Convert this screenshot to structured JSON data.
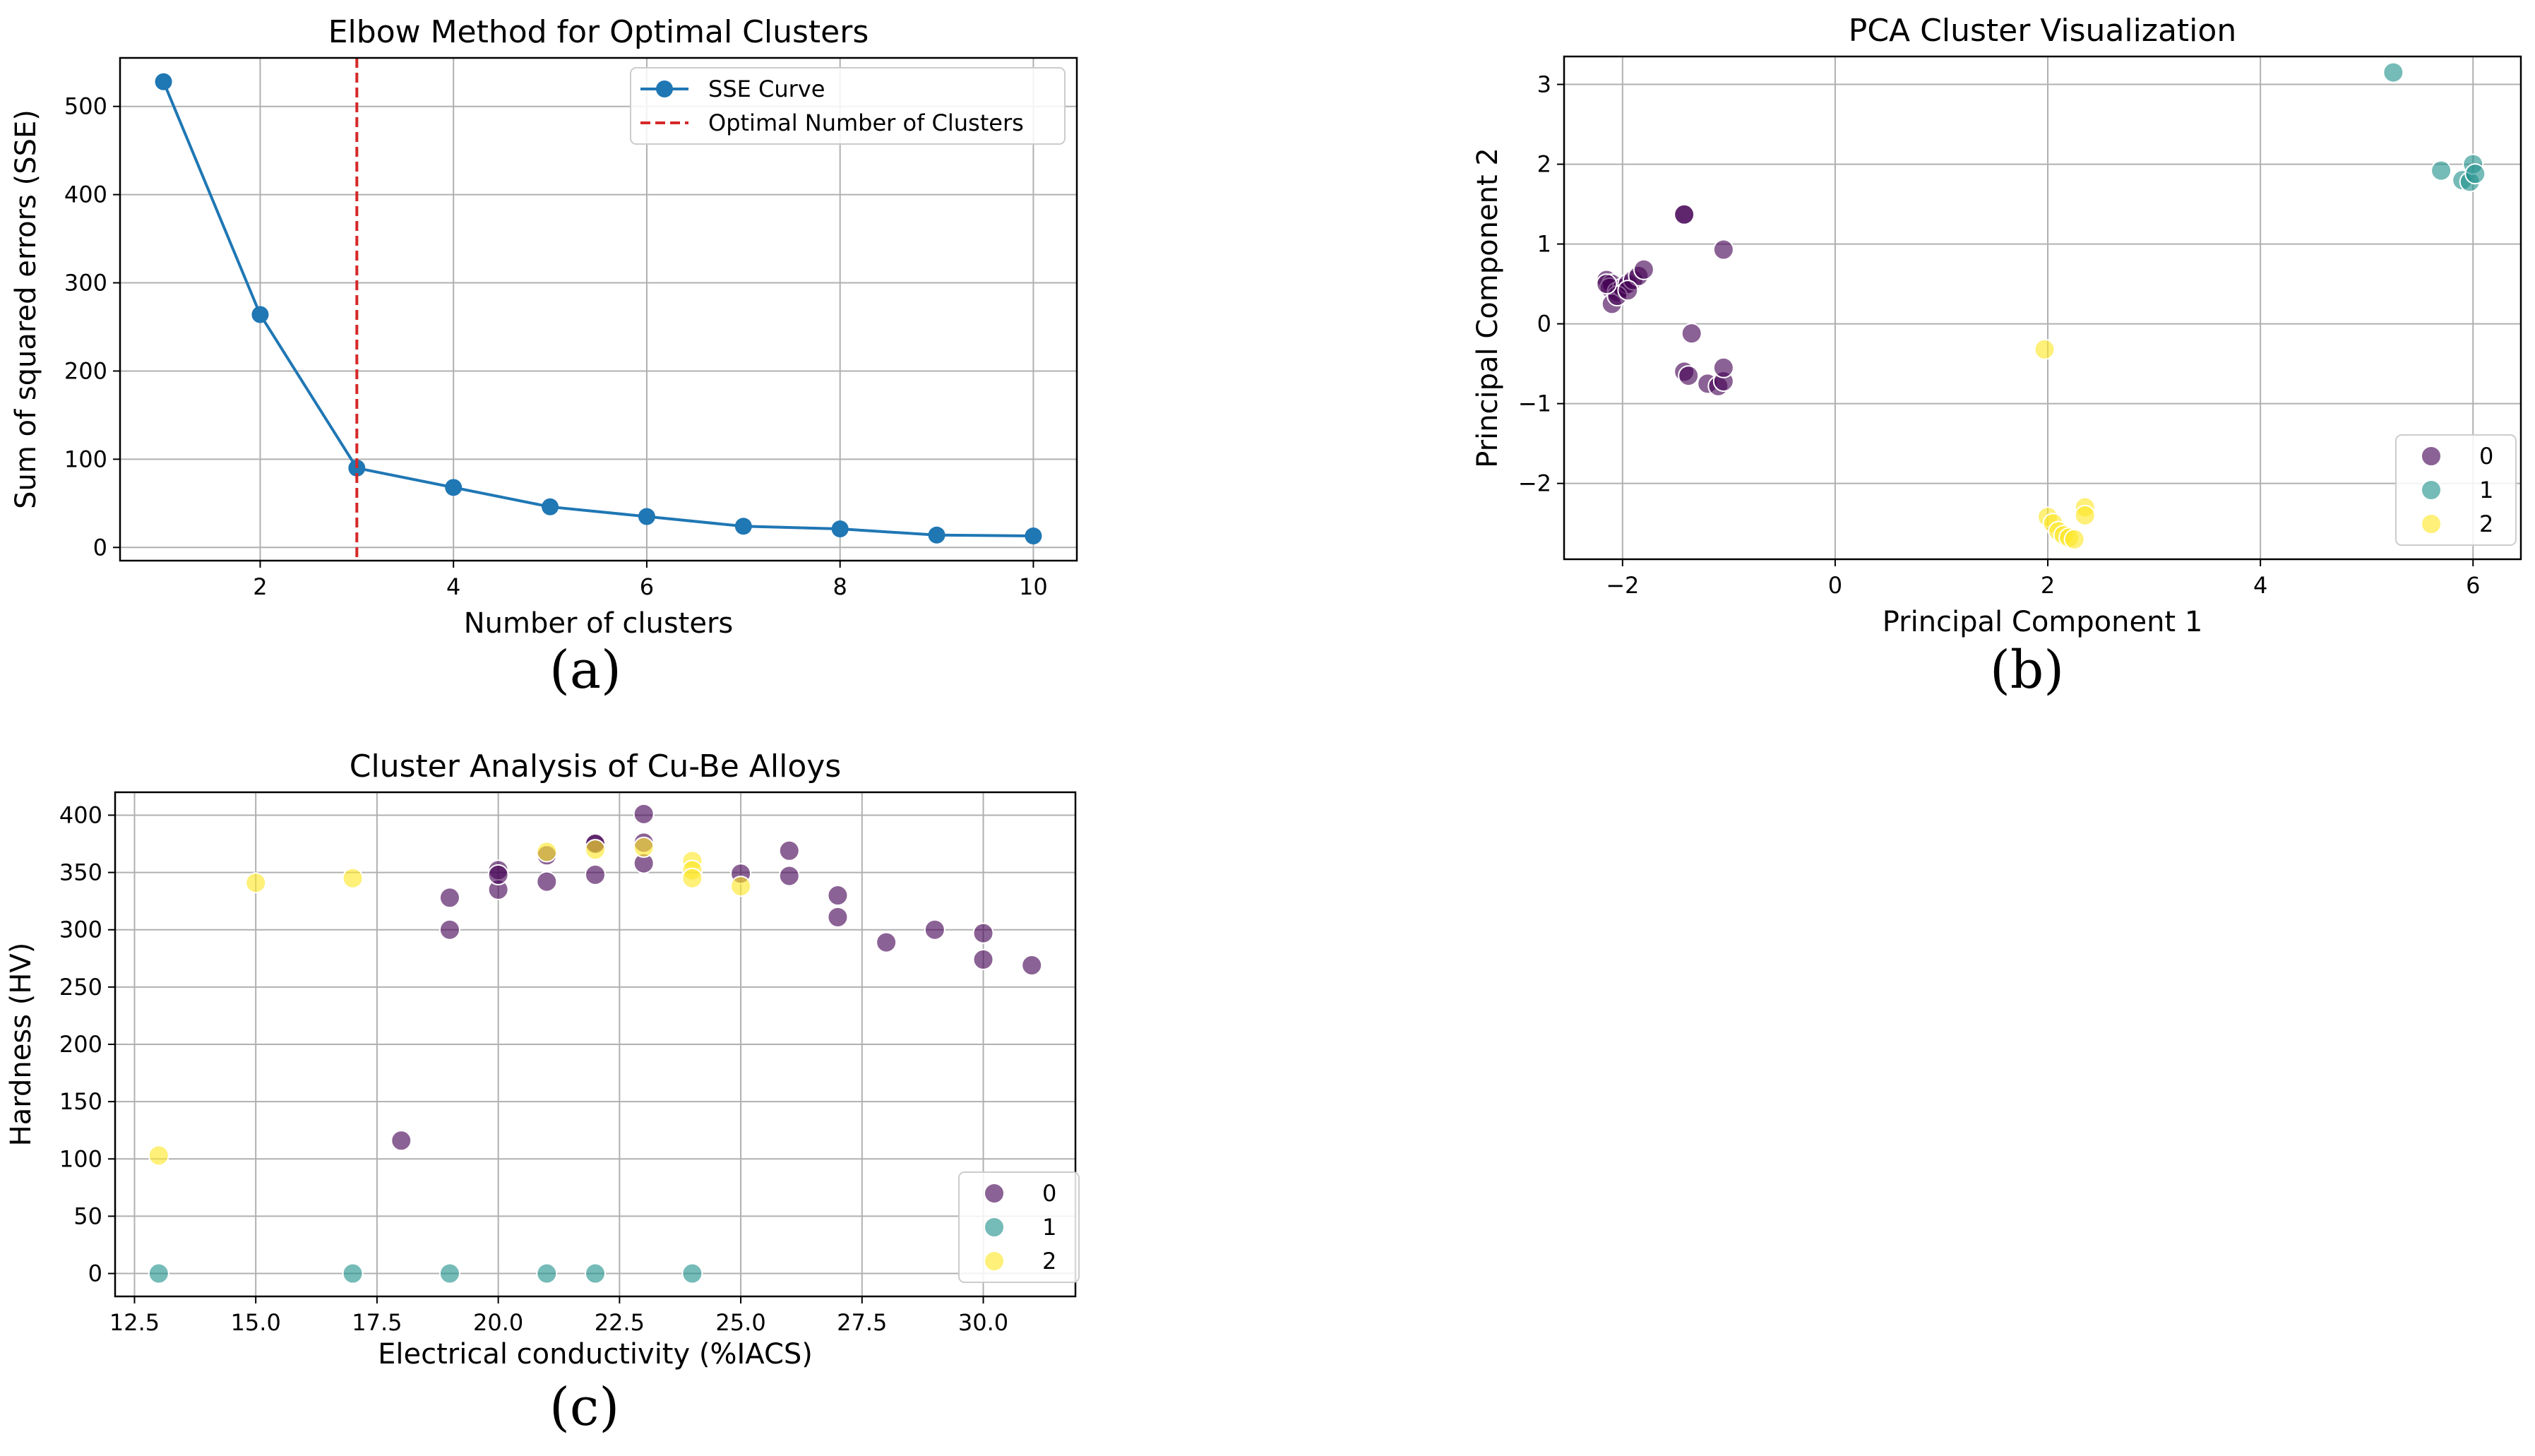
{
  "colors": {
    "line": "#1f77b4",
    "optimal": "#d62728",
    "cluster0": "#440154",
    "cluster1": "#21918c",
    "cluster2": "#fde725",
    "grid": "#b0b0b0"
  },
  "panel_labels": [
    "(a)",
    "(b)",
    "(c)"
  ],
  "chart_data": [
    {
      "type": "line",
      "title": "Elbow Method for Optimal Clusters",
      "xlabel": "Number of clusters",
      "ylabel": "Sum of squared errors (SSE)",
      "xlim": [
        0.55,
        10.45
      ],
      "ylim": [
        -15,
        555
      ],
      "xticks": [
        2,
        4,
        6,
        8,
        10
      ],
      "yticks": [
        0,
        100,
        200,
        300,
        400,
        500
      ],
      "grid": true,
      "legend_position": "top-right",
      "series": [
        {
          "name": "SSE Curve",
          "x": [
            1,
            2,
            3,
            4,
            5,
            6,
            7,
            8,
            9,
            10
          ],
          "y": [
            528,
            264,
            90,
            68,
            46,
            35,
            24,
            21,
            14,
            13
          ]
        }
      ],
      "vline": {
        "name": "Optimal Number of Clusters",
        "x": 3
      }
    },
    {
      "type": "scatter",
      "title": "PCA Cluster Visualization",
      "xlabel": "Principal Component 1",
      "ylabel": "Principal Component 2",
      "xlim": [
        -2.55,
        6.45
      ],
      "ylim": [
        -2.95,
        3.35
      ],
      "xticks": [
        -2,
        0,
        2,
        4,
        6
      ],
      "yticks": [
        -2,
        -1,
        0,
        1,
        2,
        3
      ],
      "grid": true,
      "legend_position": "bottom-right",
      "legend": [
        "0",
        "1",
        "2"
      ],
      "series": [
        {
          "name": "0",
          "points": [
            [
              -2.15,
              0.55
            ],
            [
              -2.1,
              0.5
            ],
            [
              -2.12,
              0.45
            ],
            [
              -2.05,
              0.4
            ],
            [
              -2.0,
              0.45
            ],
            [
              -1.95,
              0.5
            ],
            [
              -1.9,
              0.55
            ],
            [
              -1.85,
              0.6
            ],
            [
              -1.8,
              0.68
            ],
            [
              -2.1,
              0.25
            ],
            [
              -2.05,
              0.35
            ],
            [
              -1.95,
              0.42
            ],
            [
              -1.42,
              1.37
            ],
            [
              -1.42,
              1.37
            ],
            [
              -1.05,
              0.93
            ],
            [
              -1.35,
              -0.12
            ],
            [
              -1.42,
              -0.6
            ],
            [
              -1.38,
              -0.65
            ],
            [
              -1.2,
              -0.75
            ],
            [
              -1.1,
              -0.78
            ],
            [
              -1.05,
              -0.72
            ],
            [
              -1.05,
              -0.55
            ],
            [
              -2.15,
              0.5
            ]
          ]
        },
        {
          "name": "1",
          "points": [
            [
              5.25,
              3.15
            ],
            [
              5.7,
              1.92
            ],
            [
              5.9,
              1.8
            ],
            [
              5.97,
              1.78
            ],
            [
              6.0,
              2.0
            ],
            [
              6.02,
              1.88
            ]
          ]
        },
        {
          "name": "2",
          "points": [
            [
              1.97,
              -0.32
            ],
            [
              2.0,
              -2.42
            ],
            [
              2.05,
              -2.5
            ],
            [
              2.1,
              -2.6
            ],
            [
              2.15,
              -2.65
            ],
            [
              2.2,
              -2.68
            ],
            [
              2.25,
              -2.7
            ],
            [
              2.35,
              -2.3
            ],
            [
              2.35,
              -2.4
            ]
          ]
        }
      ]
    },
    {
      "type": "scatter",
      "title": "Cluster Analysis of Cu-Be Alloys",
      "xlabel": "Electrical conductivity (%IACS)",
      "ylabel": "Hardness (HV)",
      "xlim": [
        12.1,
        31.9
      ],
      "ylim": [
        -20,
        420
      ],
      "xticks": [
        12.5,
        15.0,
        17.5,
        20.0,
        22.5,
        25.0,
        27.5,
        30.0
      ],
      "xtick_labels": [
        "12.5",
        "15.0",
        "17.5",
        "20.0",
        "22.5",
        "25.0",
        "27.5",
        "30.0"
      ],
      "yticks": [
        0,
        50,
        100,
        150,
        200,
        250,
        300,
        350,
        400
      ],
      "grid": true,
      "legend_position": "bottom-right",
      "legend": [
        "0",
        "1",
        "2"
      ],
      "series": [
        {
          "name": "0",
          "points": [
            [
              19,
              328
            ],
            [
              19,
              300
            ],
            [
              20,
              352
            ],
            [
              20,
              335
            ],
            [
              20,
              348
            ],
            [
              21,
              342
            ],
            [
              21,
              365
            ],
            [
              22,
              376
            ],
            [
              22,
              348
            ],
            [
              22,
              375
            ],
            [
              23,
              401
            ],
            [
              23,
              358
            ],
            [
              23,
              376
            ],
            [
              25,
              349
            ],
            [
              26,
              369
            ],
            [
              26,
              347
            ],
            [
              27,
              330
            ],
            [
              27,
              311
            ],
            [
              28,
              289
            ],
            [
              29,
              300
            ],
            [
              30,
              297
            ],
            [
              30,
              274
            ],
            [
              31,
              269
            ],
            [
              18,
              116
            ]
          ]
        },
        {
          "name": "1",
          "points": [
            [
              13,
              0
            ],
            [
              17,
              0
            ],
            [
              19,
              0
            ],
            [
              21,
              0
            ],
            [
              22,
              0
            ],
            [
              24,
              0
            ]
          ]
        },
        {
          "name": "2",
          "points": [
            [
              13,
              103
            ],
            [
              15,
              341
            ],
            [
              17,
              345
            ],
            [
              21,
              368
            ],
            [
              22,
              370
            ],
            [
              23,
              372
            ],
            [
              24,
              360
            ],
            [
              24,
              352
            ],
            [
              24,
              345
            ],
            [
              25,
              338
            ]
          ]
        }
      ]
    }
  ]
}
